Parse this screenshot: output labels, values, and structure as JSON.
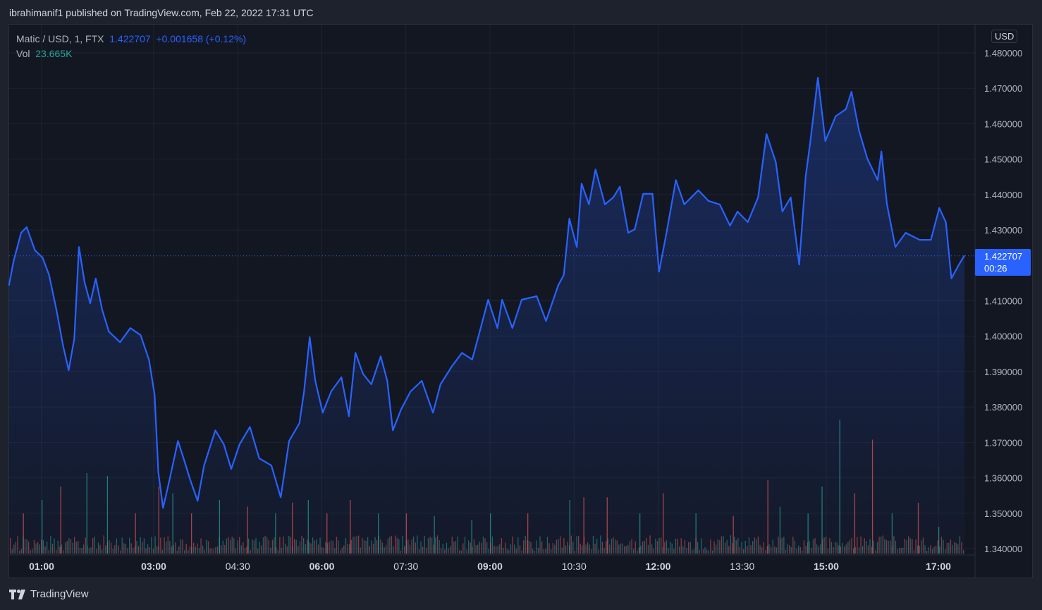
{
  "header": {
    "published": "ibrahimanif1 published on TradingView.com, Feb 22, 2022 17:31 UTC"
  },
  "legend": {
    "symbol": "Matic / USD, 1, FTX",
    "price": "1.422707",
    "change": "+0.001658 (+0.12%)",
    "vol_label": "Vol",
    "vol_value": "23.665K"
  },
  "axis": {
    "currency": "USD",
    "last_price": "1.422707",
    "countdown": "00:26"
  },
  "brand": {
    "name": "TradingView",
    "logo": "tradingview-logo"
  },
  "colors": {
    "line": "#2962ff",
    "up": "#26a69a",
    "down": "#ef5350",
    "bg": "#131722"
  },
  "chart_data": {
    "type": "area",
    "title": "",
    "y_ticks": [
      "1.480000",
      "1.470000",
      "1.460000",
      "1.450000",
      "1.440000",
      "1.430000",
      "1.410000",
      "1.400000",
      "1.390000",
      "1.380000",
      "1.370000",
      "1.360000",
      "1.350000",
      "1.340000"
    ],
    "ylim": [
      1.34,
      1.48
    ],
    "x_ticks": [
      {
        "t": "01:00",
        "bold": true
      },
      {
        "t": "03:00",
        "bold": true
      },
      {
        "t": "04:30",
        "bold": false
      },
      {
        "t": "06:00",
        "bold": true
      },
      {
        "t": "07:30",
        "bold": false
      },
      {
        "t": "09:00",
        "bold": true
      },
      {
        "t": "10:30",
        "bold": false
      },
      {
        "t": "12:00",
        "bold": true
      },
      {
        "t": "13:30",
        "bold": false
      },
      {
        "t": "15:00",
        "bold": true
      },
      {
        "t": "17:00",
        "bold": true
      }
    ],
    "grid": true,
    "series": [
      {
        "points": [
          [
            "00:25",
            1.4143
          ],
          [
            "00:30",
            1.4212
          ],
          [
            "00:38",
            1.4292
          ],
          [
            "00:44",
            1.4308
          ],
          [
            "00:53",
            1.4242
          ],
          [
            "01:01",
            1.4222
          ],
          [
            "01:08",
            1.4173
          ],
          [
            "01:16",
            1.4073
          ],
          [
            "01:23",
            1.3973
          ],
          [
            "01:29",
            1.3904
          ],
          [
            "01:35",
            1.3993
          ],
          [
            "01:40",
            1.4252
          ],
          [
            "01:46",
            1.4153
          ],
          [
            "01:52",
            1.4093
          ],
          [
            "01:58",
            1.4163
          ],
          [
            "02:05",
            1.4073
          ],
          [
            "02:12",
            1.4013
          ],
          [
            "02:24",
            1.3983
          ],
          [
            "02:35",
            1.4023
          ],
          [
            "02:46",
            1.4003
          ],
          [
            "02:55",
            1.3933
          ],
          [
            "03:01",
            1.3834
          ],
          [
            "03:05",
            1.3615
          ],
          [
            "03:10",
            1.3515
          ],
          [
            "03:17",
            1.3595
          ],
          [
            "03:26",
            1.3704
          ],
          [
            "03:32",
            1.3655
          ],
          [
            "03:39",
            1.3595
          ],
          [
            "03:47",
            1.3535
          ],
          [
            "03:54",
            1.3635
          ],
          [
            "04:06",
            1.3734
          ],
          [
            "04:15",
            1.3695
          ],
          [
            "04:23",
            1.3625
          ],
          [
            "04:32",
            1.3695
          ],
          [
            "04:43",
            1.3744
          ],
          [
            "04:53",
            1.3655
          ],
          [
            "05:06",
            1.3635
          ],
          [
            "05:16",
            1.3545
          ],
          [
            "05:25",
            1.3704
          ],
          [
            "05:36",
            1.3754
          ],
          [
            "05:41",
            1.3844
          ],
          [
            "05:47",
            1.3997
          ],
          [
            "05:53",
            1.3874
          ],
          [
            "06:01",
            1.3784
          ],
          [
            "06:10",
            1.3844
          ],
          [
            "06:21",
            1.3884
          ],
          [
            "06:29",
            1.3774
          ],
          [
            "06:36",
            1.3953
          ],
          [
            "06:44",
            1.3894
          ],
          [
            "06:53",
            1.3864
          ],
          [
            "07:03",
            1.3943
          ],
          [
            "07:10",
            1.3874
          ],
          [
            "07:16",
            1.3734
          ],
          [
            "07:25",
            1.3794
          ],
          [
            "07:35",
            1.3844
          ],
          [
            "07:47",
            1.3874
          ],
          [
            "07:59",
            1.3784
          ],
          [
            "08:07",
            1.3864
          ],
          [
            "08:19",
            1.3914
          ],
          [
            "08:30",
            1.3953
          ],
          [
            "08:41",
            1.3934
          ],
          [
            "08:51",
            1.4033
          ],
          [
            "08:58",
            1.4103
          ],
          [
            "09:08",
            1.4023
          ],
          [
            "09:13",
            1.4103
          ],
          [
            "09:24",
            1.4023
          ],
          [
            "09:34",
            1.4103
          ],
          [
            "09:50",
            1.4113
          ],
          [
            "10:00",
            1.4043
          ],
          [
            "10:13",
            1.4143
          ],
          [
            "10:19",
            1.4173
          ],
          [
            "10:25",
            1.4332
          ],
          [
            "10:33",
            1.4252
          ],
          [
            "10:38",
            1.4431
          ],
          [
            "10:46",
            1.4372
          ],
          [
            "10:53",
            1.4471
          ],
          [
            "11:03",
            1.4372
          ],
          [
            "11:12",
            1.4392
          ],
          [
            "11:19",
            1.4422
          ],
          [
            "11:28",
            1.4292
          ],
          [
            "11:35",
            1.4302
          ],
          [
            "11:44",
            1.4402
          ],
          [
            "11:54",
            1.4402
          ],
          [
            "12:01",
            1.4182
          ],
          [
            "12:09",
            1.4292
          ],
          [
            "12:19",
            1.4441
          ],
          [
            "12:28",
            1.4372
          ],
          [
            "12:43",
            1.4412
          ],
          [
            "12:54",
            1.4382
          ],
          [
            "13:06",
            1.4372
          ],
          [
            "13:17",
            1.4312
          ],
          [
            "13:25",
            1.4352
          ],
          [
            "13:36",
            1.4322
          ],
          [
            "13:47",
            1.4392
          ],
          [
            "13:56",
            1.4571
          ],
          [
            "14:06",
            1.4491
          ],
          [
            "14:13",
            1.4352
          ],
          [
            "14:22",
            1.4392
          ],
          [
            "14:31",
            1.4202
          ],
          [
            "14:38",
            1.4451
          ],
          [
            "14:43",
            1.4551
          ],
          [
            "14:51",
            1.473
          ],
          [
            "14:59",
            1.4551
          ],
          [
            "15:10",
            1.4621
          ],
          [
            "15:21",
            1.4641
          ],
          [
            "15:27",
            1.469
          ],
          [
            "15:35",
            1.4581
          ],
          [
            "15:44",
            1.4501
          ],
          [
            "15:55",
            1.4441
          ],
          [
            "15:59",
            1.4522
          ],
          [
            "16:05",
            1.4372
          ],
          [
            "16:14",
            1.4252
          ],
          [
            "16:25",
            1.4292
          ],
          [
            "16:40",
            1.4272
          ],
          [
            "16:52",
            1.4272
          ],
          [
            "17:01",
            1.4362
          ],
          [
            "17:08",
            1.4322
          ],
          [
            "17:14",
            1.4163
          ],
          [
            "17:22",
            1.4202
          ],
          [
            "17:28",
            1.4228
          ]
        ]
      }
    ],
    "last_value": 1.422707,
    "volume_relative": [
      [
        "00:40",
        0.3,
        "down"
      ],
      [
        "01:00",
        0.4,
        "up"
      ],
      [
        "01:20",
        0.5,
        "down"
      ],
      [
        "01:48",
        0.6,
        "up"
      ],
      [
        "02:10",
        0.58,
        "up"
      ],
      [
        "02:40",
        0.3,
        "down"
      ],
      [
        "03:05",
        0.5,
        "down"
      ],
      [
        "03:20",
        0.45,
        "up"
      ],
      [
        "03:40",
        0.3,
        "down"
      ],
      [
        "04:10",
        0.4,
        "up"
      ],
      [
        "04:40",
        0.35,
        "down"
      ],
      [
        "05:10",
        0.3,
        "up"
      ],
      [
        "05:28",
        0.38,
        "down"
      ],
      [
        "05:45",
        0.4,
        "up"
      ],
      [
        "06:05",
        0.3,
        "down"
      ],
      [
        "06:30",
        0.4,
        "down"
      ],
      [
        "07:00",
        0.3,
        "up"
      ],
      [
        "07:30",
        0.3,
        "down"
      ],
      [
        "08:00",
        0.28,
        "up"
      ],
      [
        "08:40",
        0.25,
        "up"
      ],
      [
        "09:00",
        0.3,
        "up"
      ],
      [
        "09:40",
        0.3,
        "down"
      ],
      [
        "10:25",
        0.4,
        "up"
      ],
      [
        "10:40",
        0.42,
        "down"
      ],
      [
        "11:05",
        0.42,
        "down"
      ],
      [
        "11:40",
        0.3,
        "up"
      ],
      [
        "12:05",
        0.45,
        "down"
      ],
      [
        "12:40",
        0.3,
        "up"
      ],
      [
        "13:20",
        0.28,
        "down"
      ],
      [
        "13:57",
        0.55,
        "down"
      ],
      [
        "14:10",
        0.35,
        "up"
      ],
      [
        "14:40",
        0.3,
        "up"
      ],
      [
        "14:55",
        0.5,
        "up"
      ],
      [
        "15:14",
        1.0,
        "up"
      ],
      [
        "15:30",
        0.45,
        "down"
      ],
      [
        "15:49",
        0.85,
        "down"
      ],
      [
        "16:10",
        0.3,
        "up"
      ],
      [
        "16:38",
        0.38,
        "down"
      ],
      [
        "17:00",
        0.2,
        "up"
      ]
    ]
  }
}
